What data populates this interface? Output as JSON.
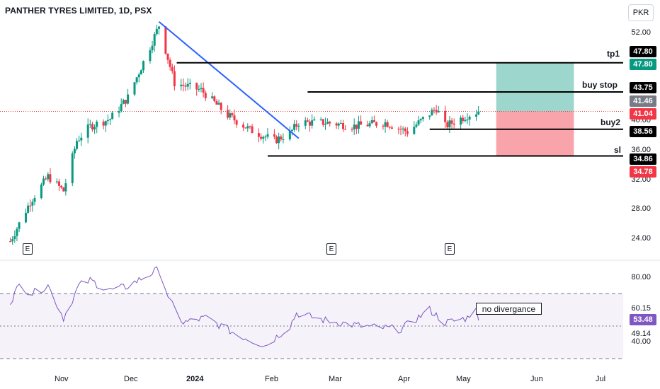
{
  "header": {
    "title": "PANTHER TYRES LIMITED, 1D, PSX",
    "currency": "PKR"
  },
  "price_axis": {
    "ticks": [
      "52.00",
      "40.00",
      "36.00",
      "32.00",
      "28.00",
      "24.00"
    ]
  },
  "price_tags": [
    {
      "label": "47.80",
      "color": "#000000"
    },
    {
      "label": "47.80",
      "color": "#089981"
    },
    {
      "label": "43.75",
      "color": "#000000"
    },
    {
      "label": "41.46",
      "color": "#787b86"
    },
    {
      "label": "41.04",
      "color": "#f23645"
    },
    {
      "label": "38.56",
      "color": "#000000"
    },
    {
      "label": "34.86",
      "color": "#000000"
    },
    {
      "label": "34.78",
      "color": "#f23645"
    }
  ],
  "levels": {
    "tp1": "tp1",
    "buy_stop": "buy stop",
    "buy2": "buy2",
    "sl": "sl"
  },
  "earnings_marker": "E",
  "rsi": {
    "ticks": [
      "80.00",
      "60.15",
      "49.14",
      "40.00"
    ],
    "value_tag": {
      "label": "53.48",
      "color": "#7e57c2"
    },
    "note": "no divergance"
  },
  "time_axis": {
    "labels": [
      "Nov",
      "Dec",
      "2024",
      "Feb",
      "Mar",
      "Apr",
      "May",
      "Jun",
      "Jul"
    ]
  },
  "chart_data": {
    "type": "candlestick",
    "symbol": "PANTHER TYRES LIMITED",
    "interval": "1D",
    "exchange": "PSX",
    "ylim": [
      22,
      55
    ],
    "last_price": 41.04,
    "levels": {
      "tp1": 47.8,
      "buy_stop": 43.75,
      "buy2": 38.56,
      "sl": 34.86
    },
    "anchors": [
      {
        "date": "2023-10-09",
        "close": 23.0
      },
      {
        "date": "2023-10-18",
        "close": 28.5
      },
      {
        "date": "2023-10-26",
        "close": 32.0
      },
      {
        "date": "2023-11-02",
        "close": 30.0
      },
      {
        "date": "2023-11-08",
        "close": 37.0
      },
      {
        "date": "2023-11-14",
        "close": 39.0
      },
      {
        "date": "2023-11-23",
        "close": 40.0
      },
      {
        "date": "2023-12-01",
        "close": 43.0
      },
      {
        "date": "2023-12-11",
        "close": 50.0
      },
      {
        "date": "2023-12-15",
        "close": 53.0
      },
      {
        "date": "2023-12-22",
        "close": 45.0
      },
      {
        "date": "2024-01-03",
        "close": 44.0
      },
      {
        "date": "2024-01-15",
        "close": 40.5
      },
      {
        "date": "2024-01-25",
        "close": 38.5
      },
      {
        "date": "2024-02-05",
        "close": 37.0
      },
      {
        "date": "2024-02-12",
        "close": 38.0
      },
      {
        "date": "2024-02-16",
        "close": 39.5
      },
      {
        "date": "2024-02-28",
        "close": 39.5
      },
      {
        "date": "2024-03-12",
        "close": 39.0
      },
      {
        "date": "2024-03-26",
        "close": 39.5
      },
      {
        "date": "2024-04-05",
        "close": 38.2
      },
      {
        "date": "2024-04-18",
        "close": 41.5
      },
      {
        "date": "2024-04-22",
        "close": 39.0
      },
      {
        "date": "2024-05-02",
        "close": 40.5
      },
      {
        "date": "2024-05-07",
        "close": 41.04
      }
    ],
    "rsi_anchors": [
      {
        "date": "2023-10-09",
        "value": 65
      },
      {
        "date": "2023-10-13",
        "value": 75
      },
      {
        "date": "2023-10-19",
        "value": 70
      },
      {
        "date": "2023-10-26",
        "value": 75
      },
      {
        "date": "2023-11-02",
        "value": 55
      },
      {
        "date": "2023-11-09",
        "value": 75
      },
      {
        "date": "2023-11-14",
        "value": 78
      },
      {
        "date": "2023-11-23",
        "value": 72
      },
      {
        "date": "2023-11-30",
        "value": 74
      },
      {
        "date": "2023-12-11",
        "value": 82
      },
      {
        "date": "2023-12-15",
        "value": 85
      },
      {
        "date": "2023-12-20",
        "value": 65
      },
      {
        "date": "2023-12-26",
        "value": 52
      },
      {
        "date": "2024-01-05",
        "value": 55
      },
      {
        "date": "2024-01-19",
        "value": 45
      },
      {
        "date": "2024-02-01",
        "value": 38
      },
      {
        "date": "2024-02-12",
        "value": 50
      },
      {
        "date": "2024-02-15",
        "value": 58
      },
      {
        "date": "2024-02-26",
        "value": 54
      },
      {
        "date": "2024-03-15",
        "value": 50
      },
      {
        "date": "2024-04-02",
        "value": 48
      },
      {
        "date": "2024-04-15",
        "value": 60
      },
      {
        "date": "2024-04-22",
        "value": 52
      },
      {
        "date": "2024-05-02",
        "value": 55
      },
      {
        "date": "2024-05-06",
        "value": 63
      },
      {
        "date": "2024-05-07",
        "value": 53.48
      }
    ],
    "trendline": {
      "from": {
        "date": "2023-12-15",
        "price": 53.5
      },
      "to": {
        "date": "2024-02-16",
        "price": 37.3
      }
    },
    "position": {
      "entry": 41.04,
      "target": 47.8,
      "stop": 34.86,
      "from": "2024-05-15",
      "to": "2024-06-19"
    },
    "earnings_dates": [
      "2023-10-26",
      "2024-02-26",
      "2024-04-29"
    ],
    "colors": {
      "up": "#089981",
      "down": "#f23645",
      "rsi": "#7e57c2",
      "trendline": "#2962ff"
    }
  }
}
